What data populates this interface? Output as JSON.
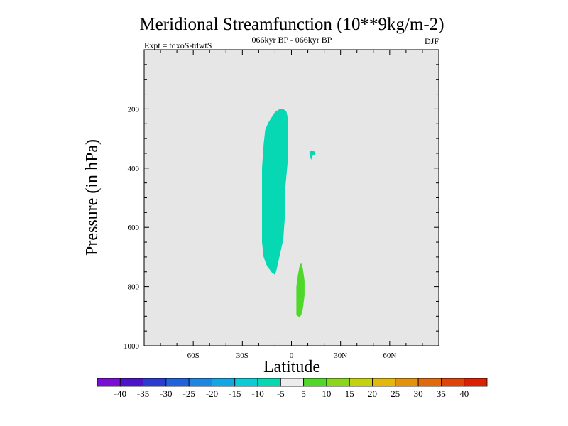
{
  "chart_data": {
    "type": "heatmap",
    "title": "Meridional Streamfunction (10**9kg/m-2)",
    "subtitle_left": "Expt = tdxoS-tdwtS",
    "subtitle_center": "066kyr BP - 066kyr BP",
    "subtitle_right": "DJF",
    "xlabel": "Latitude",
    "ylabel": "Pressure (in hPa)",
    "xlim": [
      -90,
      90
    ],
    "ylim": [
      1000,
      0
    ],
    "x_ticks": [
      {
        "value": -60,
        "label": "60S"
      },
      {
        "value": -30,
        "label": "30S"
      },
      {
        "value": 0,
        "label": "0"
      },
      {
        "value": 30,
        "label": "30N"
      },
      {
        "value": 60,
        "label": "60N"
      }
    ],
    "y_ticks": [
      {
        "value": 200,
        "label": "200"
      },
      {
        "value": 400,
        "label": "400"
      },
      {
        "value": 600,
        "label": "600"
      },
      {
        "value": 800,
        "label": "800"
      },
      {
        "value": 1000,
        "label": "1000"
      }
    ],
    "background_color": "#e6e6e6",
    "colorbar": {
      "labels": [
        "-40",
        "-35",
        "-30",
        "-25",
        "-20",
        "-15",
        "-10",
        "-5",
        "5",
        "10",
        "15",
        "20",
        "25",
        "30",
        "35",
        "40"
      ],
      "colors": [
        "#7a0ed6",
        "#4b14c8",
        "#2a3ad2",
        "#1f62dc",
        "#1c86e2",
        "#12a6e2",
        "#0ccad6",
        "#06d8b4",
        "#ececec",
        "#4fd82a",
        "#8ad61a",
        "#c4d20e",
        "#e2b80a",
        "#e2920c",
        "#e06a0c",
        "#de4408",
        "#dc2004"
      ]
    },
    "regions": [
      {
        "name": "negative-cell",
        "level": "-10 to -5",
        "color": "#06d8b4",
        "outline": [
          [
            -7,
            200
          ],
          [
            -10,
            210
          ],
          [
            -14,
            245
          ],
          [
            -16,
            270
          ],
          [
            -17,
            320
          ],
          [
            -18,
            400
          ],
          [
            -18,
            500
          ],
          [
            -18,
            600
          ],
          [
            -18,
            650
          ],
          [
            -17,
            700
          ],
          [
            -15,
            730
          ],
          [
            -12,
            752
          ],
          [
            -10,
            760
          ],
          [
            -9,
            740
          ],
          [
            -7,
            690
          ],
          [
            -5,
            640
          ],
          [
            -4,
            560
          ],
          [
            -4,
            480
          ],
          [
            -3,
            420
          ],
          [
            -2,
            360
          ],
          [
            -2,
            300
          ],
          [
            -2,
            240
          ],
          [
            -3,
            210
          ],
          [
            -5,
            200
          ]
        ]
      },
      {
        "name": "negative-blob",
        "level": "-10 to -5",
        "color": "#06d8b4",
        "outline": [
          [
            12,
            340
          ],
          [
            14,
            344
          ],
          [
            15,
            350
          ],
          [
            14,
            355
          ],
          [
            13,
            358
          ],
          [
            12,
            372
          ],
          [
            11,
            355
          ],
          [
            11,
            346
          ]
        ]
      },
      {
        "name": "positive-cell",
        "level": "5 to 10",
        "color": "#4fd82a",
        "outline": [
          [
            6,
            720
          ],
          [
            7,
            740
          ],
          [
            8,
            780
          ],
          [
            8,
            830
          ],
          [
            7,
            875
          ],
          [
            6,
            895
          ],
          [
            5,
            905
          ],
          [
            3,
            895
          ],
          [
            3,
            860
          ],
          [
            3,
            800
          ],
          [
            4,
            760
          ],
          [
            5,
            730
          ]
        ]
      }
    ]
  }
}
